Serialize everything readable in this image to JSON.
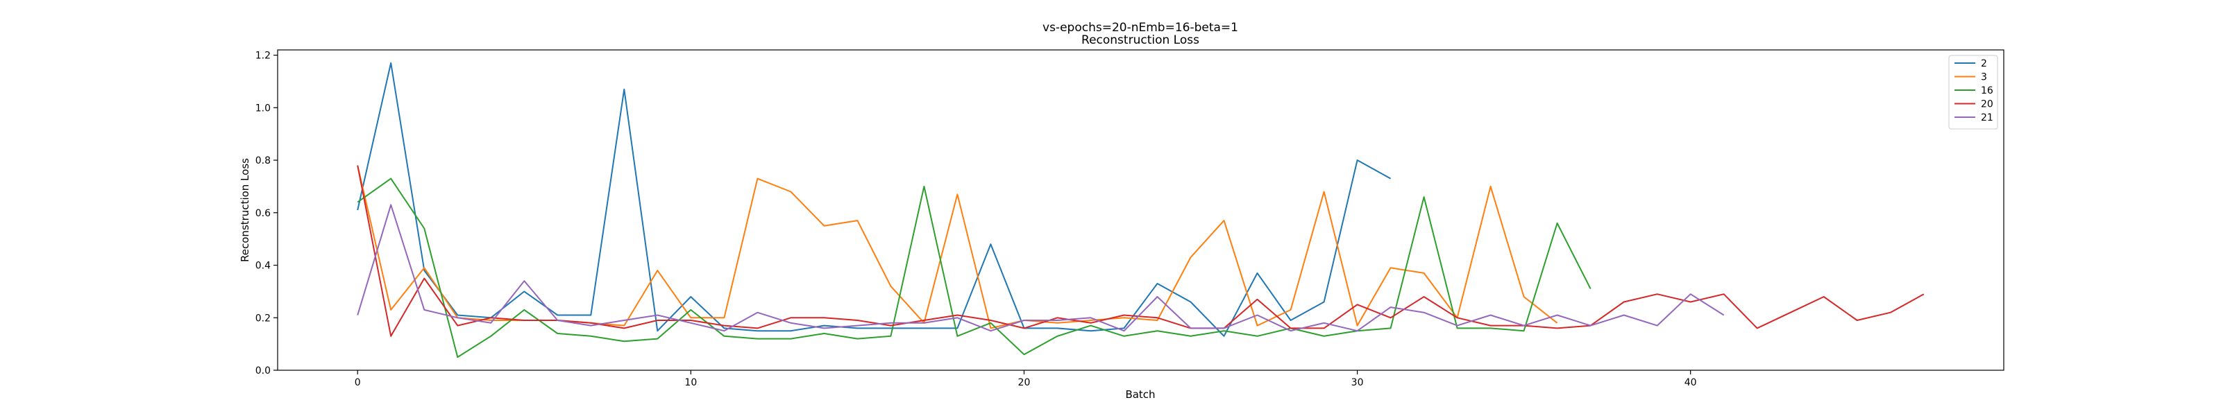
{
  "chart_data": {
    "type": "line",
    "title": "vs-epochs=20-nEmb=16-beta=1",
    "subtitle": "Reconstruction Loss",
    "xlabel": "Batch",
    "ylabel": "Reconstruction Loss",
    "xlim": [
      -2.4,
      49.4
    ],
    "ylim": [
      0.0,
      1.22
    ],
    "xticks": [
      0,
      10,
      20,
      30,
      40
    ],
    "yticks": [
      0.0,
      0.2,
      0.4,
      0.6,
      0.8,
      1.0,
      1.2
    ],
    "grid": false,
    "legend_position": "top-right",
    "series": [
      {
        "name": "2",
        "color": "#1f77b4",
        "values": [
          0.61,
          1.17,
          0.38,
          0.21,
          0.2,
          0.3,
          0.21,
          0.21,
          1.07,
          0.15,
          0.28,
          0.16,
          0.15,
          0.15,
          0.17,
          0.16,
          0.16,
          0.16,
          0.16,
          0.48,
          0.16,
          0.16,
          0.15,
          0.16,
          0.33,
          0.26,
          0.13,
          0.37,
          0.19,
          0.26,
          0.8,
          0.73
        ]
      },
      {
        "name": "3",
        "color": "#ff7f0e",
        "values": [
          0.78,
          0.23,
          0.39,
          0.2,
          0.19,
          0.19,
          0.19,
          0.18,
          0.17,
          0.38,
          0.2,
          0.2,
          0.73,
          0.68,
          0.55,
          0.57,
          0.32,
          0.18,
          0.67,
          0.16,
          0.19,
          0.18,
          0.19,
          0.2,
          0.19,
          0.43,
          0.57,
          0.17,
          0.23,
          0.68,
          0.17,
          0.39,
          0.37,
          0.2,
          0.7,
          0.28,
          0.18
        ]
      },
      {
        "name": "16",
        "color": "#2ca02c",
        "values": [
          0.64,
          0.73,
          0.54,
          0.05,
          0.13,
          0.23,
          0.14,
          0.13,
          0.11,
          0.12,
          0.23,
          0.13,
          0.12,
          0.12,
          0.14,
          0.12,
          0.13,
          0.7,
          0.13,
          0.18,
          0.06,
          0.13,
          0.17,
          0.13,
          0.15,
          0.13,
          0.15,
          0.13,
          0.16,
          0.13,
          0.15,
          0.16,
          0.66,
          0.16,
          0.16,
          0.15,
          0.56,
          0.31
        ]
      },
      {
        "name": "20",
        "color": "#d62728",
        "values": [
          0.78,
          0.13,
          0.35,
          0.17,
          0.2,
          0.19,
          0.19,
          0.18,
          0.16,
          0.19,
          0.19,
          0.17,
          0.16,
          0.2,
          0.2,
          0.19,
          0.17,
          0.19,
          0.21,
          0.19,
          0.16,
          0.2,
          0.18,
          0.21,
          0.2,
          0.16,
          0.16,
          0.27,
          0.16,
          0.16,
          0.25,
          0.2,
          0.28,
          0.2,
          0.17,
          0.17,
          0.16,
          0.17,
          0.26,
          0.29,
          0.26,
          0.29,
          0.16,
          0.22,
          0.28,
          0.19,
          0.22,
          0.29
        ]
      },
      {
        "name": "21",
        "color": "#9467bd",
        "values": [
          0.21,
          0.63,
          0.23,
          0.2,
          0.18,
          0.34,
          0.19,
          0.17,
          0.19,
          0.21,
          0.18,
          0.15,
          0.22,
          0.18,
          0.16,
          0.17,
          0.18,
          0.18,
          0.2,
          0.15,
          0.19,
          0.19,
          0.2,
          0.15,
          0.28,
          0.16,
          0.16,
          0.21,
          0.15,
          0.18,
          0.15,
          0.24,
          0.22,
          0.17,
          0.21,
          0.17,
          0.21,
          0.17,
          0.21,
          0.17,
          0.29,
          0.21
        ]
      }
    ]
  }
}
